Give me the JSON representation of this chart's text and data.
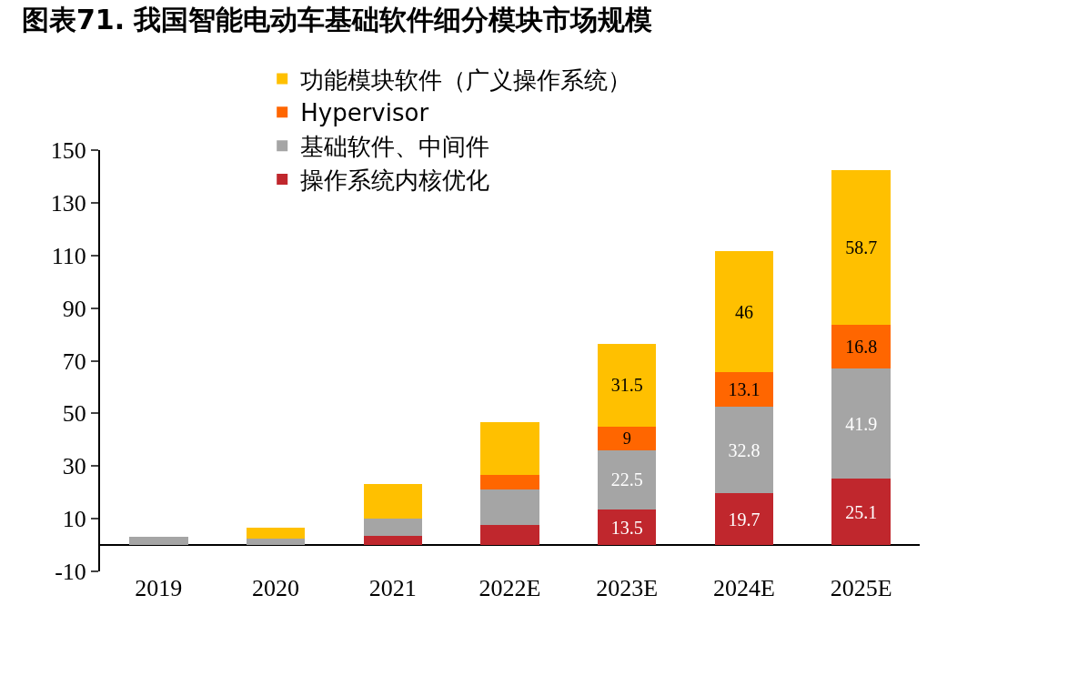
{
  "chart_data": {
    "type": "bar",
    "title": "图表71. 我国智能电动车基础软件细分模块市场规模",
    "categories": [
      "2019",
      "2020",
      "2021",
      "2022E",
      "2023E",
      "2024E",
      "2025E"
    ],
    "stacked": true,
    "series": [
      {
        "name": "操作系统内核优化",
        "color": "#c0272d",
        "values": [
          null,
          null,
          3.4,
          7.6,
          13.5,
          19.7,
          25.1
        ],
        "value_labels": [
          null,
          null,
          null,
          null,
          "13.5",
          "19.7",
          "25.1"
        ]
      },
      {
        "name": "基础软件、中间件",
        "color": "#a5a5a5",
        "values": [
          3.1,
          2.5,
          6.6,
          13.4,
          22.5,
          32.8,
          41.9
        ],
        "value_labels": [
          null,
          null,
          null,
          null,
          "22.5",
          "32.8",
          "41.9"
        ]
      },
      {
        "name": "Hypervisor",
        "color": "#ff6600",
        "values": [
          null,
          null,
          null,
          5.6,
          9,
          13.1,
          16.8
        ],
        "value_labels": [
          null,
          null,
          null,
          null,
          "9",
          "13.1",
          "16.8"
        ]
      },
      {
        "name": "功能模块软件（广义操作系统）",
        "color": "#ffc000",
        "values": [
          null,
          4.1,
          13.1,
          20.0,
          31.5,
          46,
          58.7
        ],
        "value_labels": [
          null,
          null,
          null,
          null,
          "31.5",
          "46",
          "58.7"
        ]
      }
    ],
    "ylim": [
      -10,
      150
    ],
    "yticks": [
      -10,
      10,
      30,
      50,
      70,
      90,
      110,
      130,
      150
    ],
    "legend": "top left"
  }
}
